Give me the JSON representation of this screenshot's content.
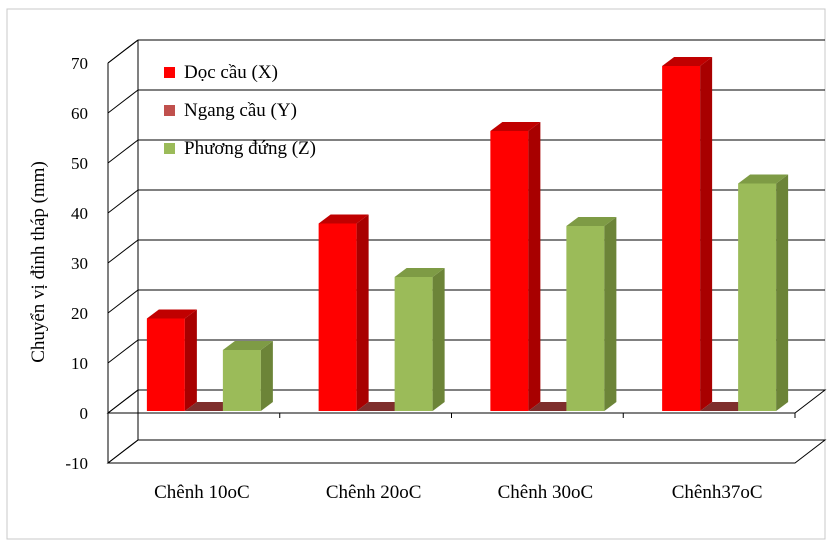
{
  "chart_data": {
    "type": "bar",
    "title": "",
    "xlabel": "",
    "ylabel": "Chuyển vị đỉnh tháp (mm)",
    "ylim": [
      -10,
      70
    ],
    "yticks": [
      -10,
      0,
      10,
      20,
      30,
      40,
      50,
      60,
      70
    ],
    "grid": true,
    "legend_position": "top-left",
    "categories": [
      "Chênh 10oC",
      "Chênh 20oC",
      "Chênh 30oC",
      "Chênh37oC"
    ],
    "series": [
      {
        "name": "Dọc cầu (X)",
        "color": "#FF0000",
        "side_color": "#A80000",
        "top_color": "#C00000",
        "values": [
          18.5,
          37.5,
          56,
          69
        ]
      },
      {
        "name": "Ngang cầu (Y)",
        "color": "#C0504D",
        "side_color": "#7E2E2C",
        "top_color": "#9B3D3A",
        "values": [
          0,
          0,
          0,
          0
        ]
      },
      {
        "name": "Phương đứng (Z)",
        "color": "#9BBB59",
        "side_color": "#6C8438",
        "top_color": "#7E9B45",
        "values": [
          12.2,
          26.8,
          37,
          45.5
        ]
      }
    ]
  }
}
